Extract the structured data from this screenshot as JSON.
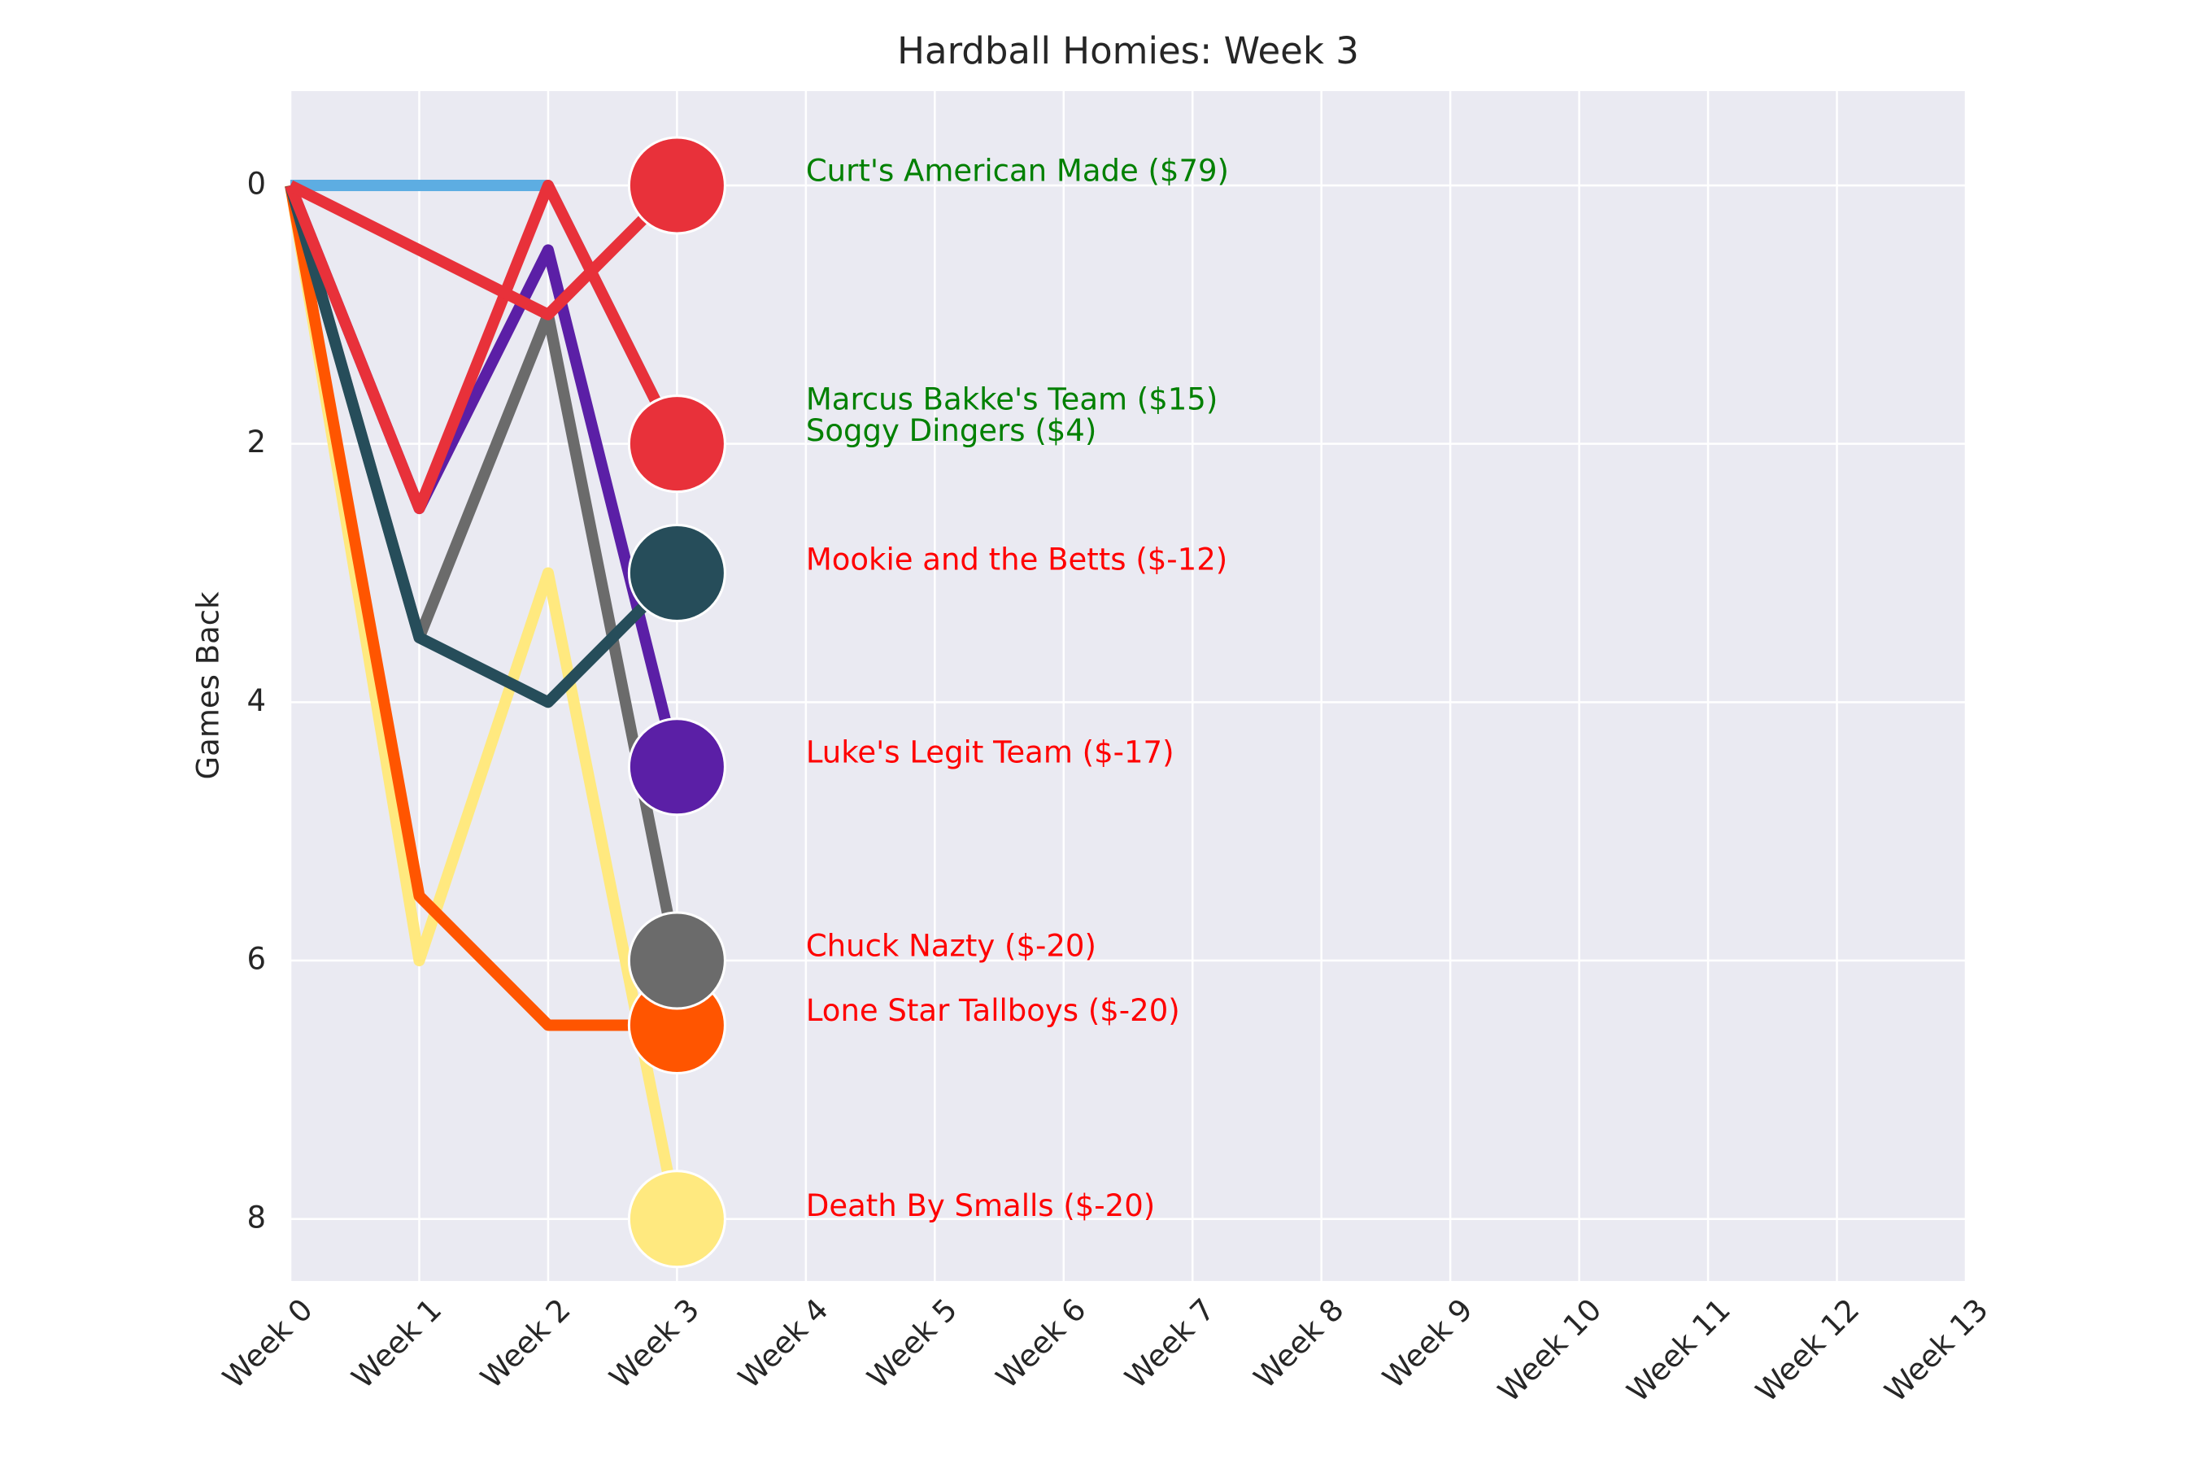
{
  "chart_data": {
    "type": "line",
    "title": "Hardball Homies: Week 3",
    "y_label": "Games Back",
    "categories": [
      "Week 0",
      "Week 1",
      "Week 2",
      "Week 3",
      "Week 4",
      "Week 5",
      "Week 6",
      "Week 7",
      "Week 8",
      "Week 9",
      "Week 10",
      "Week 11",
      "Week 12",
      "Week 13"
    ],
    "ylim": [
      -0.73,
      8.48
    ],
    "y_inverted": true,
    "yticks": [
      0,
      2,
      4,
      6,
      8
    ],
    "grid": true,
    "series": [
      {
        "name": "Soggy Dingers",
        "color": "#5dade2",
        "values": [
          0,
          0,
          0,
          2,
          null,
          null,
          null,
          null,
          null,
          null,
          null,
          null,
          null,
          null
        ]
      },
      {
        "name": "Death By Smalls",
        "color": "#ffe97f",
        "values": [
          0,
          6,
          3,
          8,
          null,
          null,
          null,
          null,
          null,
          null,
          null,
          null,
          null,
          null
        ]
      },
      {
        "name": "Lone Star Tallboys",
        "color": "#ff5500",
        "values": [
          0,
          5.5,
          6.5,
          6.5,
          null,
          null,
          null,
          null,
          null,
          null,
          null,
          null,
          null,
          null
        ]
      },
      {
        "name": "Chuck Nazty",
        "color": "#6b6b6b",
        "values": [
          0,
          3.5,
          1,
          6,
          null,
          null,
          null,
          null,
          null,
          null,
          null,
          null,
          null,
          null
        ]
      },
      {
        "name": "Luke's Legit Team",
        "color": "#5b1fa6",
        "values": [
          0,
          2.5,
          0.5,
          4.5,
          null,
          null,
          null,
          null,
          null,
          null,
          null,
          null,
          null,
          null
        ]
      },
      {
        "name": "Mookie and the Betts",
        "color": "#264d5a",
        "values": [
          0,
          3.5,
          4,
          3,
          null,
          null,
          null,
          null,
          null,
          null,
          null,
          null,
          null,
          null
        ]
      },
      {
        "name": "Marcus Bakke's Team",
        "color": "#e8313a",
        "values": [
          0,
          2.5,
          0,
          2,
          null,
          null,
          null,
          null,
          null,
          null,
          null,
          null,
          null,
          null
        ]
      },
      {
        "name": "Curt's American Made",
        "color": "#e8313a",
        "values": [
          0,
          0.5,
          1,
          0,
          null,
          null,
          null,
          null,
          null,
          null,
          null,
          null,
          null,
          null
        ]
      }
    ],
    "annotations": [
      {
        "text": "Curt's American Made ($79)",
        "x": "Week 4",
        "y": -0.1,
        "color": "#008000"
      },
      {
        "text": "Marcus Bakke's Team ($15)",
        "x": "Week 4",
        "y": 1.67,
        "color": "#008000"
      },
      {
        "text": "Soggy Dingers ($4)",
        "x": "Week 4",
        "y": 1.91,
        "color": "#008000"
      },
      {
        "text": "Mookie and the Betts ($-12)",
        "x": "Week 4",
        "y": 2.91,
        "color": "#ff0000"
      },
      {
        "text": "Luke's Legit Team ($-17)",
        "x": "Week 4",
        "y": 4.4,
        "color": "#ff0000"
      },
      {
        "text": "Chuck Nazty ($-20)",
        "x": "Week 4",
        "y": 5.9,
        "color": "#ff0000"
      },
      {
        "text": "Lone Star Tallboys ($-20)",
        "x": "Week 4",
        "y": 6.4,
        "color": "#ff0000"
      },
      {
        "text": "Death By Smalls ($-20)",
        "x": "Week 4",
        "y": 7.91,
        "color": "#ff0000"
      }
    ]
  }
}
